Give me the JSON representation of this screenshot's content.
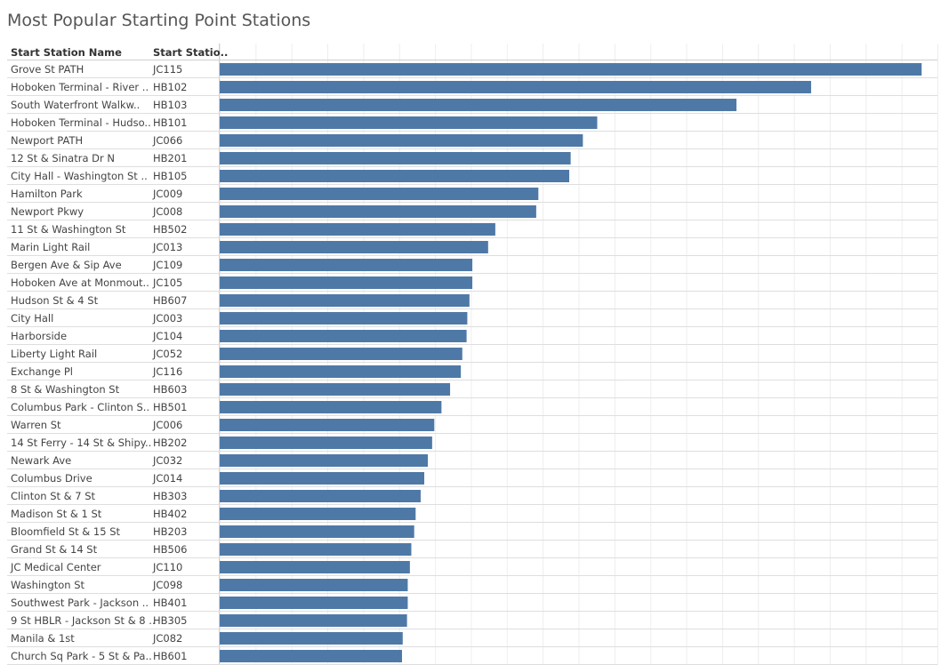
{
  "chart_data": {
    "type": "bar",
    "title": "Most Popular Starting Point Stations",
    "columns": [
      "Start Station Name",
      "Start Statio.."
    ],
    "xlim": [
      0,
      1000
    ],
    "grid": true,
    "rows": [
      {
        "name": "Grove St PATH",
        "id": "JC115",
        "value": 978
      },
      {
        "name": "Hoboken Terminal - River ..",
        "id": "HB102",
        "value": 824
      },
      {
        "name": "South Waterfront Walkw..",
        "id": "HB103",
        "value": 720
      },
      {
        "name": "Hoboken Terminal - Hudso..",
        "id": "HB101",
        "value": 526
      },
      {
        "name": "Newport PATH",
        "id": "JC066",
        "value": 506
      },
      {
        "name": "12 St & Sinatra Dr N",
        "id": "HB201",
        "value": 489
      },
      {
        "name": "City Hall - Washington St ..",
        "id": "HB105",
        "value": 487
      },
      {
        "name": "Hamilton Park",
        "id": "JC009",
        "value": 444
      },
      {
        "name": "Newport Pkwy",
        "id": "JC008",
        "value": 441
      },
      {
        "name": "11 St & Washington St",
        "id": "HB502",
        "value": 384
      },
      {
        "name": "Marin Light Rail",
        "id": "JC013",
        "value": 374
      },
      {
        "name": "Bergen Ave & Sip Ave",
        "id": "JC109",
        "value": 352
      },
      {
        "name": "Hoboken Ave at Monmout..",
        "id": "JC105",
        "value": 352
      },
      {
        "name": "Hudson St & 4 St",
        "id": "HB607",
        "value": 348
      },
      {
        "name": "City Hall",
        "id": "JC003",
        "value": 345
      },
      {
        "name": "Harborside",
        "id": "JC104",
        "value": 344
      },
      {
        "name": "Liberty Light Rail",
        "id": "JC052",
        "value": 338
      },
      {
        "name": "Exchange Pl",
        "id": "JC116",
        "value": 336
      },
      {
        "name": "8 St & Washington St",
        "id": "HB603",
        "value": 321
      },
      {
        "name": "Columbus Park - Clinton S..",
        "id": "HB501",
        "value": 309
      },
      {
        "name": "Warren St",
        "id": "JC006",
        "value": 299
      },
      {
        "name": "14 St Ferry - 14 St & Shipy..",
        "id": "HB202",
        "value": 296
      },
      {
        "name": "Newark Ave",
        "id": "JC032",
        "value": 290
      },
      {
        "name": "Columbus Drive",
        "id": "JC014",
        "value": 285
      },
      {
        "name": "Clinton St & 7 St",
        "id": "HB303",
        "value": 280
      },
      {
        "name": "Madison St & 1 St",
        "id": "HB402",
        "value": 273
      },
      {
        "name": "Bloomfield St & 15 St",
        "id": "HB203",
        "value": 271
      },
      {
        "name": "Grand St & 14 St",
        "id": "HB506",
        "value": 267
      },
      {
        "name": "JC Medical Center",
        "id": "JC110",
        "value": 265
      },
      {
        "name": "Washington St",
        "id": "JC098",
        "value": 262
      },
      {
        "name": "Southwest Park - Jackson ..",
        "id": "HB401",
        "value": 262
      },
      {
        "name": "9 St HBLR - Jackson St & 8 ..",
        "id": "HB305",
        "value": 261
      },
      {
        "name": "Manila & 1st",
        "id": "JC082",
        "value": 255
      },
      {
        "name": "Church Sq Park - 5 St & Pa..",
        "id": "HB601",
        "value": 254
      }
    ]
  },
  "colors": {
    "bar": "#4e79a7",
    "grid": "#eeeeee",
    "row_line": "#dedede"
  }
}
